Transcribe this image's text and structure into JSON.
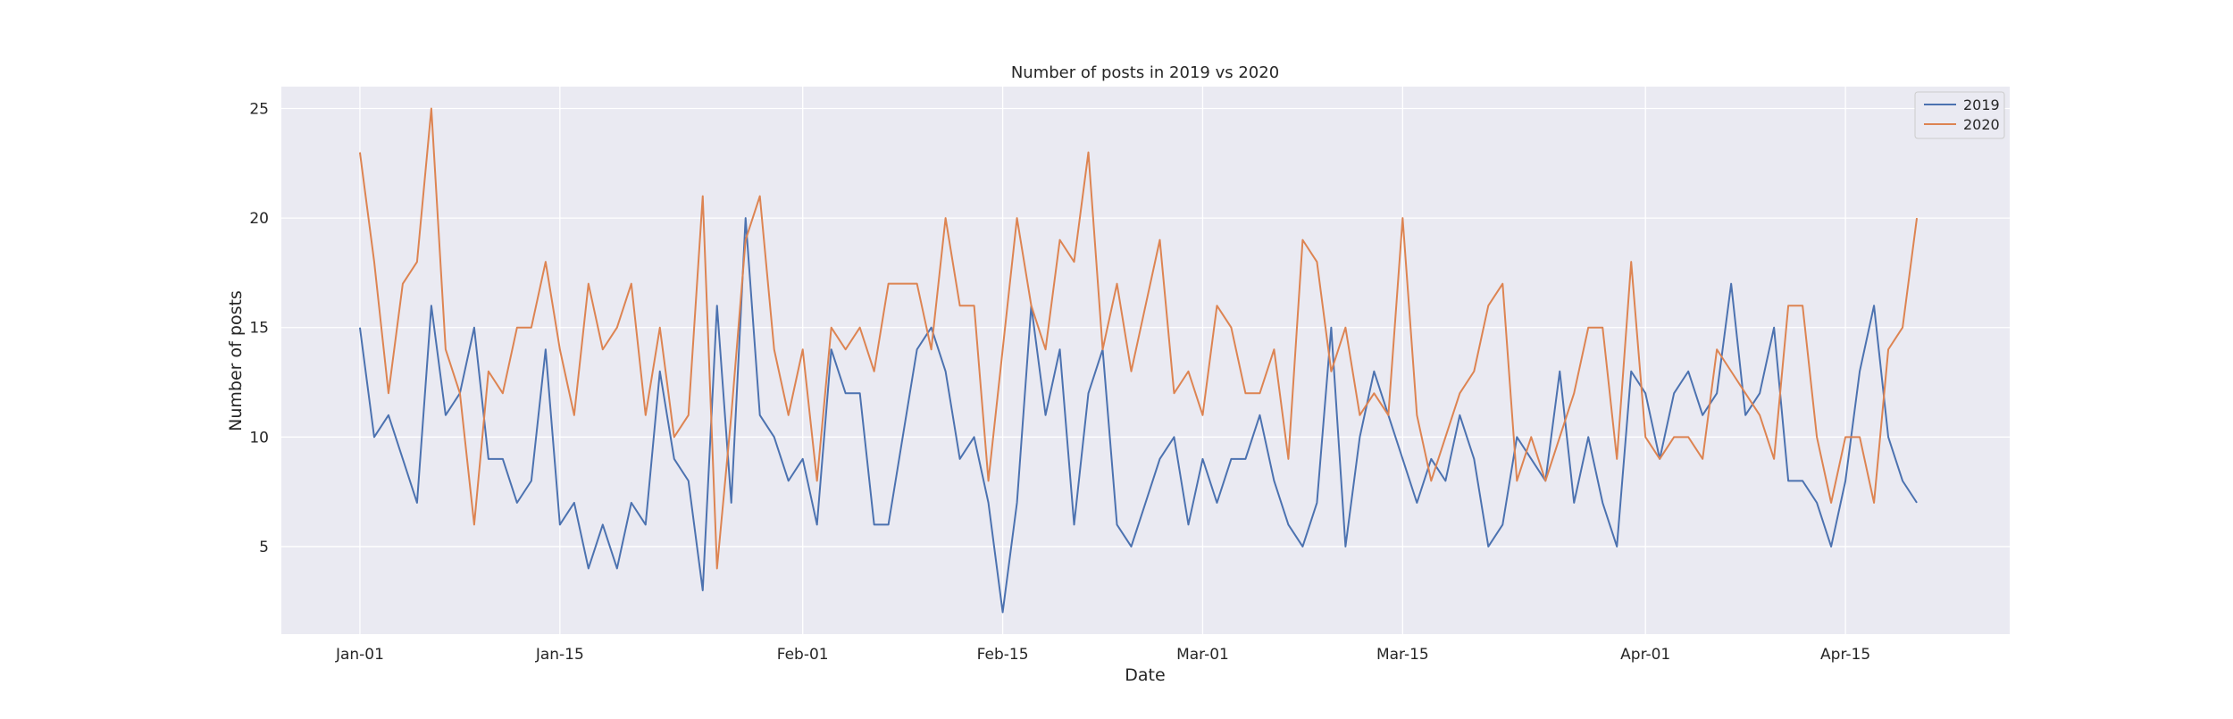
{
  "chart_data": {
    "type": "line",
    "title": "Number of posts in 2019 vs 2020",
    "xlabel": "Date",
    "ylabel": "Number of posts",
    "x": {
      "start": "Jan-01",
      "end": "Apr-21"
    },
    "xticks": [
      "Jan-01",
      "Jan-15",
      "Feb-01",
      "Feb-15",
      "Mar-01",
      "Mar-15",
      "Apr-01",
      "Apr-15"
    ],
    "yticks": [
      5,
      10,
      15,
      20,
      25
    ],
    "ylim": [
      1,
      26
    ],
    "grid": true,
    "legend_position": "top-right",
    "series": [
      {
        "name": "2019",
        "color": "#4c72b0",
        "values": [
          15,
          10,
          11,
          9,
          7,
          16,
          11,
          12,
          15,
          9,
          9,
          7,
          8,
          14,
          6,
          7,
          4,
          6,
          4,
          7,
          6,
          13,
          9,
          8,
          3,
          16,
          7,
          20,
          11,
          10,
          8,
          9,
          6,
          14,
          12,
          12,
          6,
          6,
          10,
          14,
          15,
          13,
          9,
          10,
          7,
          2,
          7,
          16,
          11,
          14,
          6,
          12,
          14,
          6,
          5,
          7,
          9,
          10,
          6,
          9,
          7,
          9,
          9,
          11,
          8,
          6,
          5,
          7,
          15,
          5,
          10,
          13,
          11,
          9,
          7,
          9,
          8,
          11,
          9,
          5,
          6,
          10,
          9,
          8,
          13,
          7,
          10,
          7,
          5,
          13,
          12,
          9,
          12,
          13,
          11,
          12,
          17,
          11,
          12,
          15,
          8,
          8,
          7,
          5,
          8,
          13,
          16,
          10,
          8,
          7
        ]
      },
      {
        "name": "2020",
        "color": "#dd8452",
        "values": [
          23,
          18,
          12,
          17,
          18,
          25,
          14,
          12,
          6,
          13,
          12,
          15,
          15,
          18,
          14,
          11,
          17,
          14,
          15,
          17,
          11,
          15,
          10,
          11,
          21,
          4,
          11,
          19,
          21,
          14,
          11,
          14,
          8,
          15,
          14,
          15,
          13,
          17,
          17,
          17,
          14,
          20,
          16,
          16,
          8,
          14,
          20,
          16,
          14,
          19,
          18,
          23,
          14,
          17,
          13,
          16,
          19,
          12,
          13,
          11,
          16,
          15,
          12,
          12,
          14,
          9,
          19,
          18,
          13,
          15,
          11,
          12,
          11,
          20,
          11,
          8,
          10,
          12,
          13,
          16,
          17,
          8,
          10,
          8,
          10,
          12,
          15,
          15,
          9,
          18,
          10,
          9,
          10,
          10,
          9,
          14,
          13,
          12,
          11,
          9,
          16,
          16,
          10,
          7,
          10,
          10,
          7,
          14,
          15,
          20
        ]
      }
    ]
  }
}
